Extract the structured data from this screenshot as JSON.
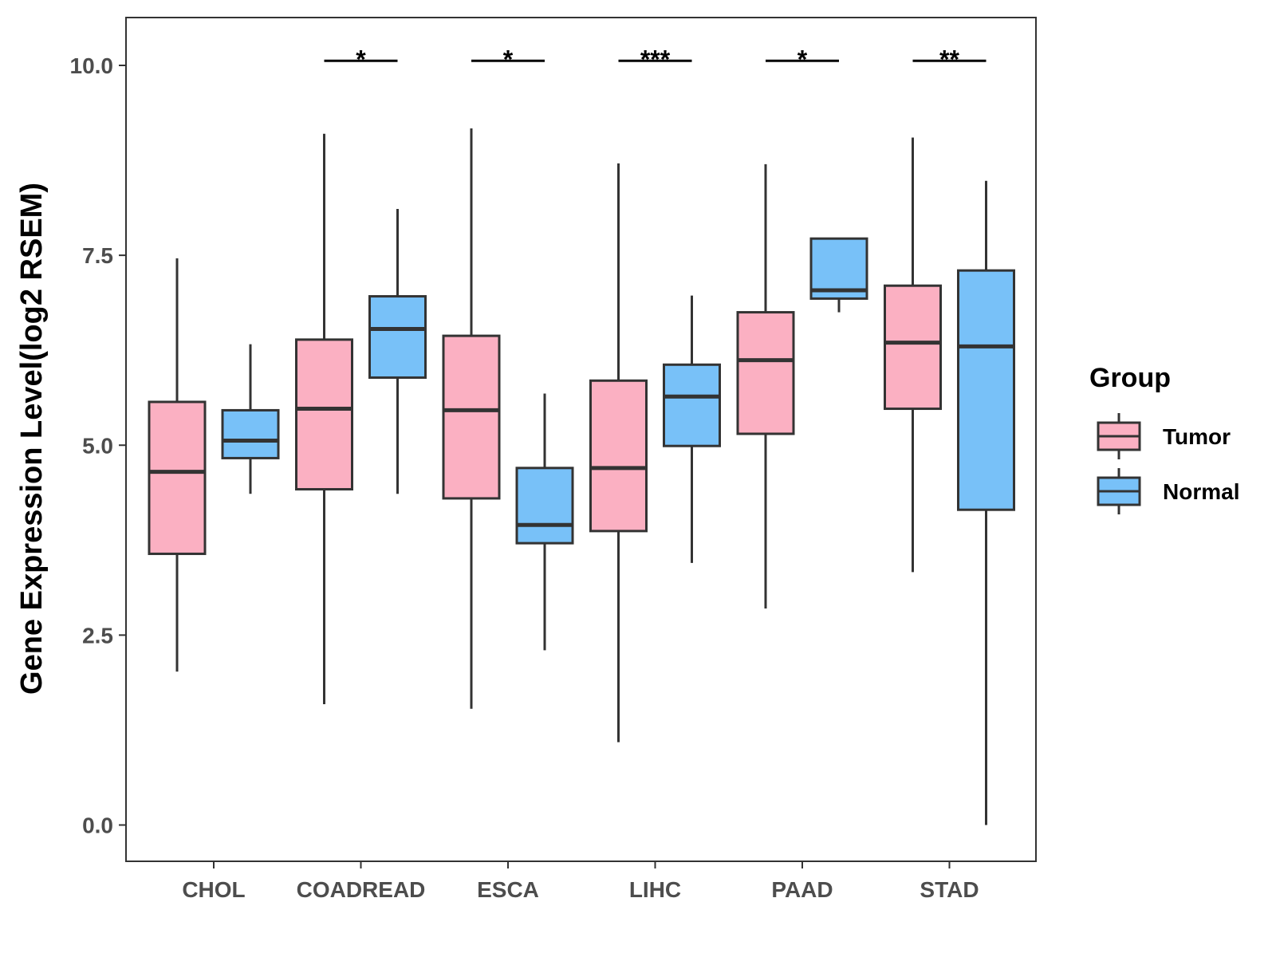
{
  "chart_data": {
    "type": "boxplot",
    "title": "",
    "xlabel": "",
    "ylabel": "Gene Expression Level(log2 RSEM)",
    "ylim": [
      -0.5,
      10.6
    ],
    "yticks": [
      0.0,
      2.5,
      5.0,
      7.5,
      10.0
    ],
    "ytick_labels": [
      "0.0",
      "2.5",
      "5.0",
      "7.5",
      "10.0"
    ],
    "categories": [
      "CHOL",
      "COADREAD",
      "ESCA",
      "LIHC",
      "PAAD",
      "STAD"
    ],
    "legend": {
      "title": "Group",
      "position": "right",
      "entries": [
        {
          "name": "Tumor",
          "color": "#fbb0c2"
        },
        {
          "name": "Normal",
          "color": "#78c1f8"
        }
      ]
    },
    "series": [
      {
        "name": "Tumor",
        "color": "#fbb0c2",
        "boxes": [
          {
            "category": "CHOL",
            "min": 2.02,
            "q1": 3.57,
            "median": 4.65,
            "q3": 5.57,
            "max": 7.46
          },
          {
            "category": "COADREAD",
            "min": 1.59,
            "q1": 4.42,
            "median": 5.48,
            "q3": 6.39,
            "max": 9.1
          },
          {
            "category": "ESCA",
            "min": 1.53,
            "q1": 4.3,
            "median": 5.46,
            "q3": 6.44,
            "max": 9.17
          },
          {
            "category": "LIHC",
            "min": 1.09,
            "q1": 3.87,
            "median": 4.7,
            "q3": 5.85,
            "max": 8.71
          },
          {
            "category": "PAAD",
            "min": 2.85,
            "q1": 5.15,
            "median": 6.12,
            "q3": 6.75,
            "max": 8.7
          },
          {
            "category": "STAD",
            "min": 3.33,
            "q1": 5.48,
            "median": 6.35,
            "q3": 7.1,
            "max": 9.05
          }
        ]
      },
      {
        "name": "Normal",
        "color": "#78c1f8",
        "boxes": [
          {
            "category": "CHOL",
            "min": 4.36,
            "q1": 4.83,
            "median": 5.06,
            "q3": 5.46,
            "max": 6.33
          },
          {
            "category": "COADREAD",
            "min": 4.36,
            "q1": 5.89,
            "median": 6.53,
            "q3": 6.96,
            "max": 8.11
          },
          {
            "category": "ESCA",
            "min": 2.3,
            "q1": 3.71,
            "median": 3.95,
            "q3": 4.7,
            "max": 5.68
          },
          {
            "category": "LIHC",
            "min": 3.45,
            "q1": 4.99,
            "median": 5.64,
            "q3": 6.06,
            "max": 6.97
          },
          {
            "category": "PAAD",
            "min": 6.75,
            "q1": 6.93,
            "median": 7.04,
            "q3": 7.72,
            "max": 7.72
          },
          {
            "category": "STAD",
            "min": 0.0,
            "q1": 4.15,
            "median": 6.3,
            "q3": 7.3,
            "max": 8.48
          }
        ]
      }
    ],
    "significance": [
      {
        "category": "COADREAD",
        "label": "*",
        "y": 10.06
      },
      {
        "category": "ESCA",
        "label": "*",
        "y": 10.06
      },
      {
        "category": "LIHC",
        "label": "***",
        "y": 10.06
      },
      {
        "category": "PAAD",
        "label": "*",
        "y": 10.06
      },
      {
        "category": "STAD",
        "label": "**",
        "y": 10.06
      }
    ]
  }
}
